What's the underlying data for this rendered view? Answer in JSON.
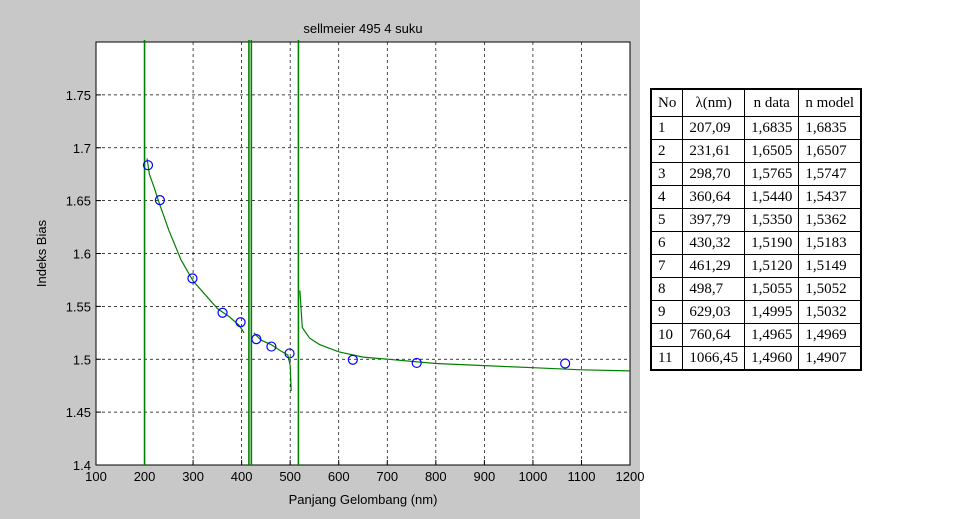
{
  "chart_data": {
    "type": "scatter",
    "title": "sellmeier 495 4 suku",
    "xlabel": "Panjang Gelombang (nm)",
    "ylabel": "Indeks Bias",
    "xlim": [
      100,
      1200
    ],
    "ylim": [
      1.4,
      1.8
    ],
    "xticks": [
      "100",
      "200",
      "300",
      "400",
      "500",
      "600",
      "700",
      "800",
      "900",
      "1000",
      "1100",
      "1200"
    ],
    "yticks": [
      "1.4",
      "1.45",
      "1.5",
      "1.55",
      "1.6",
      "1.65",
      "1.7",
      "1.75"
    ],
    "grid": true,
    "series": [
      {
        "kind": "markers",
        "color": "#0000ff",
        "x": [
          207.09,
          231.61,
          298.7,
          360.64,
          397.79,
          430.32,
          461.29,
          498.7,
          629.03,
          760.64,
          1066.45
        ],
        "y": [
          1.6835,
          1.6505,
          1.5765,
          1.544,
          1.535,
          1.519,
          1.512,
          1.5055,
          1.4995,
          1.4965,
          1.496
        ]
      },
      {
        "kind": "model-curve",
        "color": "#008000",
        "segments": [
          {
            "x": [
              205,
              210,
              220,
              230,
              250,
              275,
              300,
              325,
              350,
              375,
              395,
              405
            ],
            "y": [
              1.69,
              1.675,
              1.662,
              1.648,
              1.622,
              1.594,
              1.574,
              1.561,
              1.548,
              1.54,
              1.532,
              1.525
            ]
          },
          {
            "x": [
              425,
              440,
              460,
              480,
              495,
              500,
              502
            ],
            "y": [
              1.525,
              1.518,
              1.514,
              1.508,
              1.504,
              1.494,
              1.47
            ]
          },
          {
            "x": [
              520,
              525,
              540,
              560,
              600,
              650,
              700,
              800,
              900,
              1000,
              1100,
              1200
            ],
            "y": [
              1.565,
              1.53,
              1.52,
              1.514,
              1.507,
              1.502,
              1.5,
              1.496,
              1.494,
              1.492,
              1.49,
              1.489
            ]
          }
        ],
        "asymptotes": [
          200,
          415,
          420,
          517
        ]
      }
    ]
  },
  "table": {
    "headers": [
      "No",
      "λ(nm)",
      "n data",
      "n model"
    ],
    "rows": [
      [
        "1",
        "207,09",
        "1,6835",
        "1,6835"
      ],
      [
        "2",
        "231,61",
        "1,6505",
        "1,6507"
      ],
      [
        "3",
        "298,70",
        "1,5765",
        "1,5747"
      ],
      [
        "4",
        "360,64",
        "1,5440",
        "1,5437"
      ],
      [
        "5",
        "397,79",
        "1,5350",
        "1,5362"
      ],
      [
        "6",
        "430,32",
        "1,5190",
        "1,5183"
      ],
      [
        "7",
        "461,29",
        "1,5120",
        "1,5149"
      ],
      [
        "8",
        "498,7",
        "1,5055",
        "1,5052"
      ],
      [
        "9",
        "629,03",
        "1,4995",
        "1,5032"
      ],
      [
        "10",
        "760,64",
        "1,4965",
        "1,4969"
      ],
      [
        "11",
        "1066,45",
        "1,4960",
        "1,4907"
      ]
    ]
  }
}
